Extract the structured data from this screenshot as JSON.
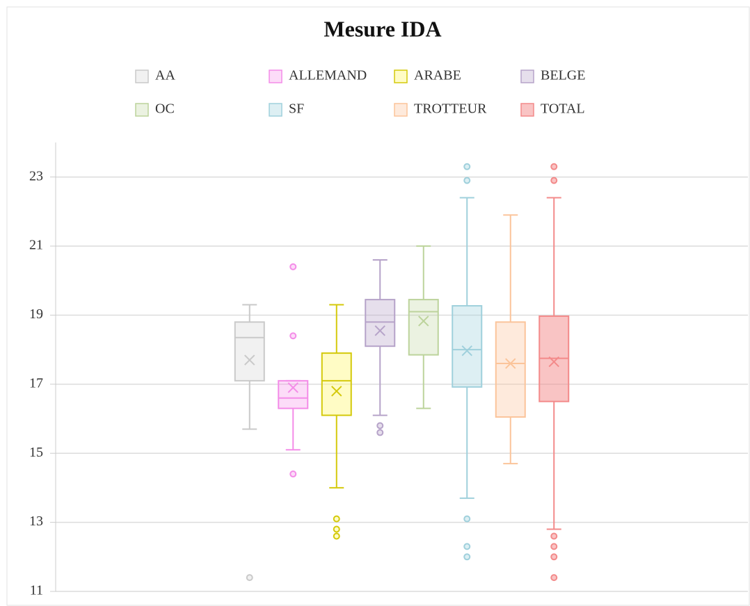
{
  "chart_data": {
    "type": "boxplot",
    "title": "Mesure IDA",
    "ylim": [
      11,
      24
    ],
    "yticks": [
      11,
      13,
      15,
      17,
      19,
      21,
      23
    ],
    "grid": true,
    "series": [
      {
        "name": "AA",
        "color": "#c9c9c9",
        "fill": "rgba(201,201,201,0.25)",
        "min": 15.7,
        "q1": 17.1,
        "median": 18.35,
        "q3": 18.8,
        "max": 19.3,
        "mean": 17.7,
        "outliers": [
          11.4
        ]
      },
      {
        "name": "ALLEMAND",
        "color": "#f48ce8",
        "fill": "rgba(244,140,232,0.3)",
        "min": 15.1,
        "q1": 16.3,
        "median": 16.6,
        "q3": 17.1,
        "max": 17.1,
        "mean": 16.9,
        "outliers": [
          20.4,
          18.4,
          14.4
        ]
      },
      {
        "name": "ARABE",
        "color": "#d4c90a",
        "fill": "rgba(255,250,150,0.55)",
        "min": 14.0,
        "q1": 16.1,
        "median": 17.1,
        "q3": 17.9,
        "max": 19.3,
        "mean": 16.8,
        "outliers": [
          13.1,
          12.8,
          12.6
        ]
      },
      {
        "name": "BELGE",
        "color": "#b6a3c9",
        "fill": "rgba(182,163,201,0.35)",
        "min": 16.1,
        "q1": 18.1,
        "median": 18.8,
        "q3": 19.45,
        "max": 20.6,
        "mean": 18.55,
        "outliers": [
          15.8,
          15.6
        ]
      },
      {
        "name": "OC",
        "color": "#bcd39b",
        "fill": "rgba(188,211,155,0.3)",
        "min": 16.3,
        "q1": 17.85,
        "median": 19.1,
        "q3": 19.45,
        "max": 21.0,
        "mean": 18.83,
        "outliers": []
      },
      {
        "name": "SF",
        "color": "#9fd0dc",
        "fill": "rgba(159,208,220,0.35)",
        "min": 13.7,
        "q1": 16.92,
        "median": 18.0,
        "q3": 19.27,
        "max": 22.4,
        "mean": 17.97,
        "outliers": [
          23.3,
          22.9,
          13.1,
          12.3,
          12.0
        ]
      },
      {
        "name": "TROTTEUR",
        "color": "#fbc49a",
        "fill": "rgba(251,196,154,0.35)",
        "min": 14.7,
        "q1": 16.05,
        "median": 17.6,
        "q3": 18.8,
        "max": 21.9,
        "mean": 17.6,
        "outliers": []
      },
      {
        "name": "TOTAL",
        "color": "#f38a8a",
        "fill": "rgba(243,138,138,0.5)",
        "min": 12.8,
        "q1": 16.5,
        "median": 17.75,
        "q3": 18.97,
        "max": 22.4,
        "mean": 17.65,
        "outliers": [
          23.3,
          22.9,
          12.6,
          12.3,
          12.0,
          11.4
        ]
      }
    ]
  }
}
